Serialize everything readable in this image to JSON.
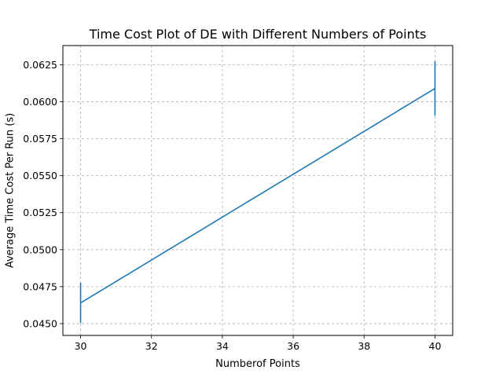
{
  "chart_data": {
    "type": "line",
    "title": "Time Cost Plot of DE with Different Numbers of Points",
    "xlabel": "Numberof Points",
    "ylabel": "Average Time Cost Per Run (s)",
    "xlim": [
      29.5,
      40.5
    ],
    "ylim": [
      0.0442,
      0.0638
    ],
    "x_ticks": [
      30,
      32,
      34,
      36,
      38,
      40
    ],
    "x_tick_labels": [
      "30",
      "32",
      "34",
      "36",
      "38",
      "40"
    ],
    "y_ticks": [
      0.045,
      0.0475,
      0.05,
      0.0525,
      0.055,
      0.0575,
      0.06,
      0.0625
    ],
    "y_tick_labels": [
      "0.0450",
      "0.0475",
      "0.0500",
      "0.0525",
      "0.0550",
      "0.0575",
      "0.0600",
      "0.0625"
    ],
    "grid": true,
    "series": [
      {
        "x": [
          30,
          40
        ],
        "y": [
          0.0464,
          0.0609
        ],
        "yerr": [
          0.00136,
          0.00185
        ],
        "color": "#1f77b4"
      }
    ]
  }
}
